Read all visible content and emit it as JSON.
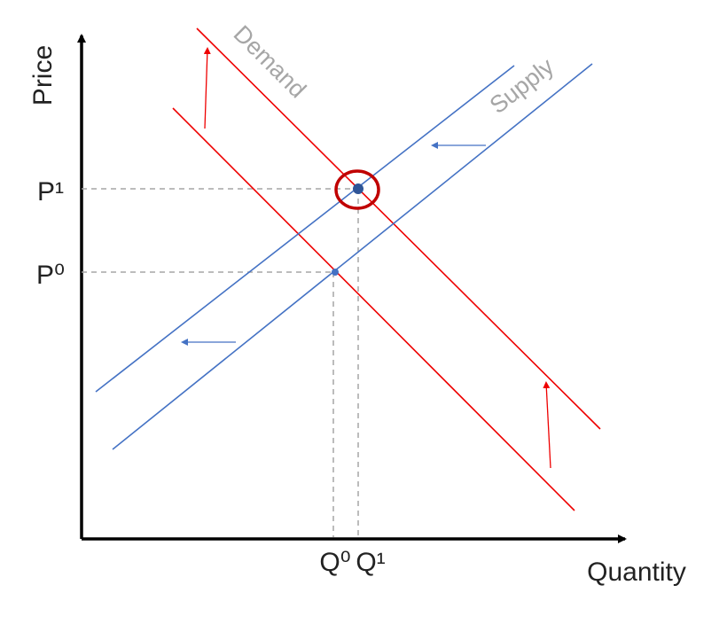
{
  "axes": {
    "y_label": "Price",
    "x_label": "Quantity"
  },
  "curves": {
    "demand": "Demand",
    "supply": "Supply"
  },
  "price_labels": [
    "P¹",
    "P⁰"
  ],
  "quantity_labels": [
    "Q⁰",
    "Q¹"
  ]
}
